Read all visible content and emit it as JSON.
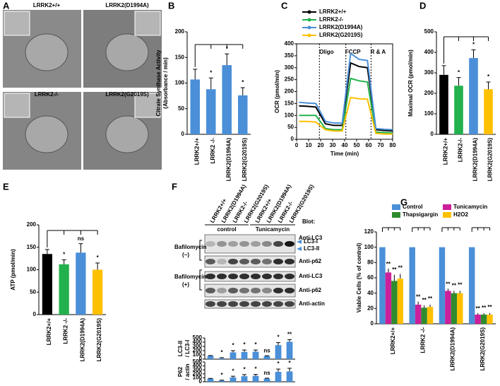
{
  "micrographs": {
    "panel": "A",
    "labels": [
      "LRRK2+/+",
      "LRRK2(D1994A)",
      "LRRK2-/-",
      "LRRK2(G2019S)"
    ]
  },
  "blot": {
    "panel": "F",
    "lanes": [
      "LRRK2+/+",
      "LRRK2(D1994A)",
      "LRRK2-/-",
      "LRRK2(G2019S)",
      "LRRK2+/+",
      "LRRK2(D1994A)",
      "LRRK2-/-",
      "LRRK2(G2019S)"
    ],
    "heading": "Blot:",
    "groups": [
      "control",
      "Tunicamycin"
    ],
    "rows": [
      "Anti-LC3",
      "Anti-p62",
      "Anti-LC3",
      "Anti-p62",
      "Anti-actin"
    ],
    "lc3_bands": [
      "LC3-I",
      "LC3-II"
    ],
    "conditions": [
      [
        "Bafilomycin",
        "(−)"
      ],
      [
        "Bafilomycin",
        "(+)"
      ]
    ]
  },
  "chart_data": [
    {
      "type": "bar",
      "panel": "B",
      "ylabel": [
        "Citrate Synthase Activity",
        "(Absorbance / min)"
      ],
      "categories": [
        "LRRK2+/+",
        "LRRK2 -/-",
        "LRRK2(D1994A)",
        "LRRK2(G2019S)"
      ],
      "values": [
        107,
        88,
        135,
        76
      ],
      "errors": [
        20,
        22,
        22,
        15
      ],
      "color": "#4a8fd8",
      "value_annotations": [
        null,
        "*",
        "*",
        "*"
      ],
      "ylim": [
        0,
        200
      ],
      "yticks": [
        0,
        50,
        100,
        150,
        200
      ]
    },
    {
      "type": "line",
      "panel": "C",
      "xlabel": "Time (min)",
      "ylabel": "OCR (pmol/min)",
      "x": [
        2,
        9,
        16,
        24,
        31,
        38,
        45,
        52,
        59,
        66,
        73,
        80
      ],
      "series": [
        {
          "name": "LRRK2+/+",
          "color": "#000000",
          "values": [
            140,
            138,
            135,
            65,
            58,
            58,
            320,
            305,
            300,
            40,
            37,
            35
          ]
        },
        {
          "name": "LRRK2-/-",
          "color": "#22b14c",
          "values": [
            100,
            100,
            100,
            45,
            40,
            40,
            255,
            245,
            240,
            30,
            28,
            27
          ]
        },
        {
          "name": "LRRK2(D1994A)",
          "color": "#4a8fd8",
          "values": [
            155,
            152,
            150,
            75,
            68,
            68,
            360,
            335,
            330,
            45,
            42,
            40
          ]
        },
        {
          "name": "LRRK2(G2019S)",
          "color": "#ffc000",
          "values": [
            75,
            75,
            72,
            40,
            35,
            35,
            175,
            170,
            168,
            25,
            22,
            22
          ]
        }
      ],
      "markers": [
        {
          "label": "Oligo",
          "x": 19
        },
        {
          "label": "FCCP",
          "x": 41
        },
        {
          "label": "R & A",
          "x": 62
        }
      ],
      "xlim": [
        0,
        80
      ],
      "xticks": [
        0,
        10,
        20,
        30,
        40,
        50,
        60,
        70,
        80
      ],
      "ylim": [
        0,
        400
      ],
      "yticks": [
        0,
        50,
        100,
        150,
        200,
        250,
        300,
        350,
        400
      ]
    },
    {
      "type": "bar",
      "panel": "D",
      "ylabel": [
        "Maximal OCR (pmol/min)"
      ],
      "categories": [
        "LRRK2+/+",
        "LRRK2-/-",
        "LRRK2(D1994A)",
        "LRRK2(G2019S)"
      ],
      "values": [
        290,
        237,
        372,
        220
      ],
      "errors": [
        45,
        40,
        40,
        35
      ],
      "colors": [
        "#000000",
        "#22b14c",
        "#4a8fd8",
        "#ffc000"
      ],
      "value_annotations": [
        null,
        "*",
        "*",
        "*"
      ],
      "ylim": [
        0,
        500
      ],
      "yticks": [
        0,
        100,
        200,
        300,
        400,
        500
      ]
    },
    {
      "type": "bar",
      "panel": "E",
      "ylabel": [
        "ATP (pmol/min)"
      ],
      "categories": [
        "LRRK2+/+",
        "LRRK2 -/-",
        "LRRK2(D1994A)",
        "LRRK2(G2019S)"
      ],
      "values": [
        135,
        112,
        138,
        100
      ],
      "errors": [
        10,
        10,
        20,
        15
      ],
      "colors": [
        "#000000",
        "#22b14c",
        "#4a8fd8",
        "#ffc000"
      ],
      "value_annotations": [
        null,
        "*",
        "ns",
        "*"
      ],
      "ylim": [
        0,
        200
      ],
      "yticks": [
        0,
        50,
        100,
        150,
        200
      ]
    },
    {
      "type": "bar",
      "ylabel": [
        "LC3-II",
        "/ LC3-I"
      ],
      "values": [
        80,
        20,
        160,
        170,
        175,
        75,
        330,
        410
      ],
      "errors": [
        5,
        15,
        40,
        45,
        40,
        5,
        60,
        50
      ],
      "color": "#4a8fd8",
      "value_annotations": [
        null,
        "*",
        "*",
        "*",
        "*",
        "ns",
        "*",
        "**"
      ],
      "ylim": [
        0,
        500
      ],
      "yticks": [
        0,
        100,
        200,
        300,
        400,
        500
      ]
    },
    {
      "type": "bar",
      "ylabel": [
        "P62",
        "/ actin"
      ],
      "values": [
        80,
        30,
        110,
        140,
        150,
        80,
        250,
        260
      ],
      "errors": [
        5,
        10,
        30,
        40,
        35,
        10,
        70,
        80
      ],
      "color": "#4a8fd8",
      "value_annotations": [
        null,
        "*",
        "*",
        "*",
        "*",
        "ns",
        "*",
        "*"
      ],
      "ylim": [
        0,
        500
      ],
      "yticks": [
        0,
        100,
        200,
        300,
        400,
        500
      ]
    },
    {
      "type": "grouped_bar",
      "panel": "G",
      "ylabel": [
        "Viable Cells (% of control)"
      ],
      "categories": [
        "LRRK2+/+",
        "LRRK2 -/-",
        "LRRK2(D1994A)",
        "LRRK2(G2019S)"
      ],
      "series": [
        {
          "name": "Control",
          "color": "#4a8fd8",
          "values": [
            100,
            100,
            100,
            100
          ]
        },
        {
          "name": "Tunicamycin",
          "color": "#cc1f9a",
          "values": [
            67,
            25,
            43,
            12
          ],
          "errors": [
            5,
            4,
            3,
            2
          ],
          "value_annotations": [
            "**",
            "**",
            "**",
            "**"
          ]
        },
        {
          "name": "Thapsigargin",
          "color": "#2e8b2e",
          "values": [
            56,
            21,
            40,
            12
          ],
          "errors": [
            8,
            3,
            3,
            2
          ],
          "value_annotations": [
            "**",
            "**",
            "**",
            "**"
          ]
        },
        {
          "name": "H2O2",
          "color": "#ffc000",
          "values": [
            59,
            22,
            40,
            12
          ],
          "errors": [
            6,
            3,
            3,
            2
          ],
          "value_annotations": [
            "**",
            "**",
            "**",
            "**"
          ]
        }
      ],
      "ylim": [
        0,
        120
      ],
      "yticks": [
        0,
        20,
        40,
        60,
        80,
        100,
        120
      ]
    }
  ]
}
